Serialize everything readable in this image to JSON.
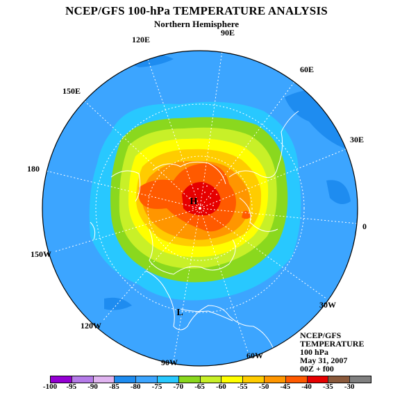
{
  "title": "NCEP/GFS 100-hPa TEMPERATURE ANALYSIS",
  "subtitle": "Northern Hemisphere",
  "longitude_labels": [
    "90E",
    "120E",
    "60E",
    "150E",
    "30E",
    "180",
    "0",
    "150W",
    "30W",
    "120W",
    "60W",
    "90W"
  ],
  "markers": {
    "high": "H",
    "low": "L"
  },
  "info": {
    "source": "NCEP/GFS",
    "field": "TEMPERATURE",
    "level": "100 hPa",
    "date": "May 31, 2007",
    "time": "00Z + f00"
  },
  "colorbar": {
    "colors": [
      "#9400d3",
      "#b57be8",
      "#e0b4f0",
      "#1e8cf0",
      "#3ca5ff",
      "#28c8ff",
      "#8ad81e",
      "#c8f028",
      "#ffff00",
      "#ffcc00",
      "#ff9600",
      "#ff5a00",
      "#e60000",
      "#8b5a3c",
      "#808080"
    ],
    "ticks": [
      "-100",
      "-95",
      "-90",
      "-85",
      "-80",
      "-75",
      "-70",
      "-65",
      "-60",
      "-55",
      "-50",
      "-45",
      "-40",
      "-35",
      "-30"
    ]
  },
  "palette": {
    "ocean_blue": "#3ca5ff",
    "pale_blue": "#28c8ff",
    "green": "#8ad81e",
    "yellowgreen": "#c8f028",
    "yellow": "#ffff00",
    "orange_light": "#ffcc00",
    "orange": "#ff9600",
    "orange_dark": "#ff5a00",
    "red": "#e60000",
    "dark_blue": "#1e8cf0"
  }
}
